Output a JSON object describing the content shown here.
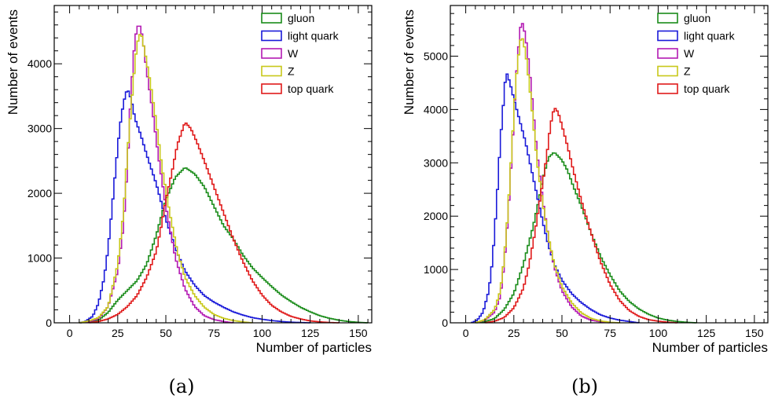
{
  "figure": {
    "panels": [
      {
        "caption": "(a)"
      },
      {
        "caption": "(b)"
      }
    ]
  },
  "chart_data": [
    {
      "type": "histogram",
      "caption": "(a)",
      "xlabel": "Number of particles",
      "ylabel": "Number of events",
      "xlim": [
        -8,
        157
      ],
      "ylim": [
        0,
        4900
      ],
      "xticks": [
        0,
        25,
        50,
        75,
        100,
        125,
        150
      ],
      "yticks": [
        0,
        1000,
        2000,
        3000,
        4000
      ],
      "legend_position": "top-right",
      "grid": false,
      "series": [
        {
          "name": "gluon",
          "color": "#1a8c1a",
          "points": [
            [
              5,
              0
            ],
            [
              10,
              10
            ],
            [
              15,
              40
            ],
            [
              20,
              160
            ],
            [
              25,
              350
            ],
            [
              30,
              500
            ],
            [
              35,
              650
            ],
            [
              40,
              900
            ],
            [
              45,
              1350
            ],
            [
              50,
              1900
            ],
            [
              55,
              2250
            ],
            [
              60,
              2400
            ],
            [
              65,
              2300
            ],
            [
              70,
              2100
            ],
            [
              75,
              1800
            ],
            [
              80,
              1500
            ],
            [
              85,
              1300
            ],
            [
              90,
              1050
            ],
            [
              95,
              850
            ],
            [
              100,
              700
            ],
            [
              105,
              560
            ],
            [
              110,
              430
            ],
            [
              115,
              330
            ],
            [
              120,
              240
            ],
            [
              125,
              170
            ],
            [
              130,
              110
            ],
            [
              135,
              70
            ],
            [
              140,
              40
            ],
            [
              145,
              20
            ],
            [
              150,
              8
            ],
            [
              155,
              0
            ]
          ]
        },
        {
          "name": "light quark",
          "color": "#1a1ad9",
          "points": [
            [
              5,
              0
            ],
            [
              8,
              20
            ],
            [
              12,
              100
            ],
            [
              15,
              300
            ],
            [
              18,
              700
            ],
            [
              20,
              1150
            ],
            [
              22,
              1750
            ],
            [
              24,
              2400
            ],
            [
              26,
              3000
            ],
            [
              28,
              3400
            ],
            [
              30,
              3620
            ],
            [
              32,
              3450
            ],
            [
              34,
              3150
            ],
            [
              37,
              2900
            ],
            [
              40,
              2600
            ],
            [
              45,
              2150
            ],
            [
              50,
              1600
            ],
            [
              55,
              1150
            ],
            [
              60,
              800
            ],
            [
              65,
              580
            ],
            [
              70,
              420
            ],
            [
              75,
              320
            ],
            [
              80,
              240
            ],
            [
              85,
              170
            ],
            [
              90,
              120
            ],
            [
              95,
              80
            ],
            [
              100,
              55
            ],
            [
              105,
              35
            ],
            [
              110,
              20
            ],
            [
              115,
              10
            ],
            [
              125,
              0
            ]
          ]
        },
        {
          "name": "W",
          "color": "#b31ab3",
          "points": [
            [
              5,
              0
            ],
            [
              10,
              20
            ],
            [
              15,
              60
            ],
            [
              20,
              250
            ],
            [
              25,
              800
            ],
            [
              28,
              1500
            ],
            [
              30,
              2400
            ],
            [
              32,
              3600
            ],
            [
              34,
              4400
            ],
            [
              36,
              4640
            ],
            [
              38,
              4400
            ],
            [
              40,
              3900
            ],
            [
              43,
              3300
            ],
            [
              46,
              2600
            ],
            [
              50,
              1800
            ],
            [
              55,
              1000
            ],
            [
              60,
              520
            ],
            [
              65,
              250
            ],
            [
              70,
              110
            ],
            [
              75,
              50
            ],
            [
              80,
              20
            ],
            [
              85,
              0
            ]
          ]
        },
        {
          "name": "Z",
          "color": "#c8c81a",
          "points": [
            [
              5,
              0
            ],
            [
              10,
              30
            ],
            [
              15,
              80
            ],
            [
              20,
              250
            ],
            [
              25,
              900
            ],
            [
              28,
              1700
            ],
            [
              30,
              2600
            ],
            [
              33,
              3700
            ],
            [
              35,
              4300
            ],
            [
              37,
              4500
            ],
            [
              39,
              4200
            ],
            [
              42,
              3700
            ],
            [
              45,
              3100
            ],
            [
              48,
              2400
            ],
            [
              52,
              1700
            ],
            [
              56,
              1100
            ],
            [
              60,
              700
            ],
            [
              65,
              420
            ],
            [
              70,
              240
            ],
            [
              75,
              130
            ],
            [
              80,
              70
            ],
            [
              85,
              35
            ],
            [
              90,
              15
            ],
            [
              95,
              0
            ]
          ]
        },
        {
          "name": "top quark",
          "color": "#e01a1a",
          "points": [
            [
              10,
              0
            ],
            [
              15,
              20
            ],
            [
              20,
              60
            ],
            [
              25,
              130
            ],
            [
              30,
              250
            ],
            [
              35,
              420
            ],
            [
              40,
              700
            ],
            [
              45,
              1100
            ],
            [
              48,
              1550
            ],
            [
              50,
              1900
            ],
            [
              53,
              2300
            ],
            [
              56,
              2750
            ],
            [
              60,
              3100
            ],
            [
              63,
              3000
            ],
            [
              66,
              2800
            ],
            [
              70,
              2500
            ],
            [
              75,
              2100
            ],
            [
              80,
              1700
            ],
            [
              85,
              1300
            ],
            [
              90,
              950
            ],
            [
              95,
              650
            ],
            [
              100,
              430
            ],
            [
              105,
              270
            ],
            [
              110,
              170
            ],
            [
              115,
              100
            ],
            [
              120,
              60
            ],
            [
              125,
              30
            ],
            [
              130,
              15
            ],
            [
              135,
              5
            ],
            [
              140,
              0
            ]
          ]
        },
        {
          "legend_order": [
            "gluon",
            "light quark",
            "W",
            "Z",
            "top quark"
          ]
        }
      ]
    },
    {
      "type": "histogram",
      "caption": "(b)",
      "xlabel": "Number of particles",
      "ylabel": "Number of events",
      "xlim": [
        -8,
        157
      ],
      "ylim": [
        0,
        5950
      ],
      "xticks": [
        0,
        25,
        50,
        75,
        100,
        125,
        150
      ],
      "yticks": [
        0,
        1000,
        2000,
        3000,
        4000,
        5000
      ],
      "legend_position": "top-right",
      "grid": false,
      "series": [
        {
          "name": "gluon",
          "color": "#1a8c1a",
          "points": [
            [
              5,
              0
            ],
            [
              10,
              20
            ],
            [
              15,
              80
            ],
            [
              20,
              250
            ],
            [
              25,
              550
            ],
            [
              30,
              1100
            ],
            [
              35,
              1800
            ],
            [
              38,
              2300
            ],
            [
              40,
              2700
            ],
            [
              43,
              3100
            ],
            [
              46,
              3200
            ],
            [
              50,
              3050
            ],
            [
              53,
              2850
            ],
            [
              56,
              2550
            ],
            [
              60,
              2200
            ],
            [
              65,
              1700
            ],
            [
              70,
              1250
            ],
            [
              75,
              900
            ],
            [
              80,
              600
            ],
            [
              85,
              400
            ],
            [
              90,
              260
            ],
            [
              95,
              160
            ],
            [
              100,
              90
            ],
            [
              105,
              50
            ],
            [
              110,
              25
            ],
            [
              115,
              10
            ],
            [
              120,
              0
            ]
          ]
        },
        {
          "name": "light quark",
          "color": "#1a1ad9",
          "points": [
            [
              3,
              0
            ],
            [
              6,
              50
            ],
            [
              9,
              200
            ],
            [
              12,
              600
            ],
            [
              14,
              1200
            ],
            [
              16,
              2200
            ],
            [
              18,
              3400
            ],
            [
              20,
              4300
            ],
            [
              21,
              4720
            ],
            [
              23,
              4500
            ],
            [
              25,
              4200
            ],
            [
              28,
              3800
            ],
            [
              31,
              3400
            ],
            [
              34,
              2900
            ],
            [
              37,
              2400
            ],
            [
              40,
              1900
            ],
            [
              43,
              1450
            ],
            [
              46,
              1100
            ],
            [
              50,
              800
            ],
            [
              55,
              550
            ],
            [
              60,
              380
            ],
            [
              65,
              250
            ],
            [
              70,
              150
            ],
            [
              75,
              90
            ],
            [
              80,
              50
            ],
            [
              85,
              25
            ],
            [
              90,
              0
            ]
          ]
        },
        {
          "name": "W",
          "color": "#b31ab3",
          "points": [
            [
              5,
              0
            ],
            [
              10,
              50
            ],
            [
              15,
              200
            ],
            [
              18,
              500
            ],
            [
              20,
              1100
            ],
            [
              22,
              2000
            ],
            [
              24,
              3200
            ],
            [
              26,
              4500
            ],
            [
              28,
              5400
            ],
            [
              29,
              5680
            ],
            [
              31,
              5400
            ],
            [
              33,
              4800
            ],
            [
              35,
              4000
            ],
            [
              37,
              3200
            ],
            [
              40,
              2300
            ],
            [
              43,
              1600
            ],
            [
              46,
              1050
            ],
            [
              50,
              600
            ],
            [
              55,
              300
            ],
            [
              60,
              130
            ],
            [
              65,
              50
            ],
            [
              70,
              20
            ],
            [
              75,
              0
            ]
          ]
        },
        {
          "name": "Z",
          "color": "#c8c81a",
          "points": [
            [
              5,
              0
            ],
            [
              10,
              60
            ],
            [
              15,
              250
            ],
            [
              18,
              600
            ],
            [
              20,
              1200
            ],
            [
              22,
              2100
            ],
            [
              24,
              3300
            ],
            [
              26,
              4500
            ],
            [
              28,
              5200
            ],
            [
              29,
              5400
            ],
            [
              31,
              5100
            ],
            [
              33,
              4500
            ],
            [
              35,
              3800
            ],
            [
              37,
              3050
            ],
            [
              40,
              2250
            ],
            [
              43,
              1600
            ],
            [
              46,
              1100
            ],
            [
              50,
              680
            ],
            [
              55,
              380
            ],
            [
              60,
              190
            ],
            [
              65,
              85
            ],
            [
              70,
              35
            ],
            [
              75,
              10
            ],
            [
              80,
              0
            ]
          ]
        },
        {
          "name": "top quark",
          "color": "#e01a1a",
          "points": [
            [
              10,
              0
            ],
            [
              15,
              30
            ],
            [
              20,
              100
            ],
            [
              25,
              280
            ],
            [
              30,
              650
            ],
            [
              33,
              1100
            ],
            [
              36,
              1700
            ],
            [
              39,
              2400
            ],
            [
              42,
              3100
            ],
            [
              44,
              3700
            ],
            [
              46,
              4040
            ],
            [
              48,
              3950
            ],
            [
              50,
              3700
            ],
            [
              53,
              3300
            ],
            [
              56,
              2850
            ],
            [
              60,
              2300
            ],
            [
              65,
              1700
            ],
            [
              70,
              1150
            ],
            [
              75,
              720
            ],
            [
              80,
              420
            ],
            [
              85,
              230
            ],
            [
              90,
              120
            ],
            [
              95,
              60
            ],
            [
              100,
              30
            ],
            [
              105,
              12
            ],
            [
              110,
              0
            ]
          ]
        },
        {
          "legend_order": [
            "gluon",
            "light quark",
            "W",
            "Z",
            "top quark"
          ]
        }
      ]
    }
  ]
}
